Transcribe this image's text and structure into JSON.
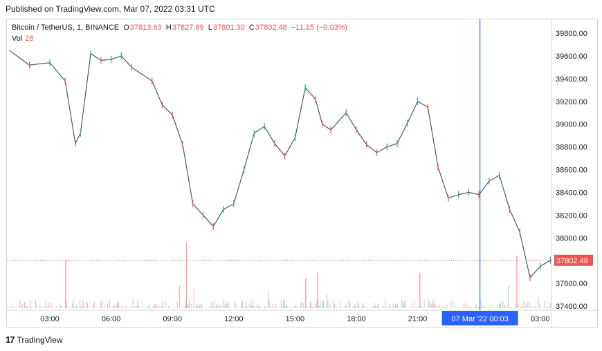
{
  "published": "Published on TradingView.com, Mar 07, 2022 03:31 UTC",
  "legend": {
    "symbol": "Bitcoin / TetherUS, 1, BINANCE",
    "o_label": "O",
    "o_value": "37813.63",
    "h_label": "H",
    "h_value": "37827.89",
    "l_label": "L",
    "l_value": "37801.30",
    "c_label": "C",
    "c_value": "37802.48",
    "change": "−11.15 (−0.03%)",
    "vol_label": "Vol",
    "vol_value": "28"
  },
  "footer": {
    "logo": "17",
    "brand": "TradingView"
  },
  "colors": {
    "up": "#26a69a",
    "down": "#ef5350",
    "crosshair": "#2962ff",
    "price_tag": "#ef5350"
  },
  "chart_data": {
    "type": "line",
    "title": "Bitcoin / TetherUS, 1, BINANCE",
    "xlabel": "",
    "ylabel": "",
    "ylim": [
      37400,
      39800
    ],
    "yticks": [
      "39800.00",
      "39600.00",
      "39400.00",
      "39200.00",
      "39000.00",
      "38800.00",
      "38600.00",
      "38400.00",
      "38200.00",
      "38000.00",
      "37600.00",
      "37400.00"
    ],
    "xticks": [
      "03:00",
      "06:00",
      "09:00",
      "12:00",
      "15:00",
      "18:00",
      "21:00",
      "03:00"
    ],
    "current_price": "37802.48",
    "crosshair_label": "07 Mar '22   00:03",
    "crosshair_time": "00:03",
    "grid": false,
    "series": [
      {
        "x": [
          "01:00",
          "02:00",
          "03:00",
          "03:45",
          "04:15",
          "04:30",
          "05:00",
          "05:30",
          "06:00",
          "06:30",
          "07:00",
          "08:00",
          "08:30",
          "09:00",
          "09:30",
          "10:00",
          "10:30",
          "11:00",
          "11:30",
          "12:00",
          "12:30",
          "13:00",
          "13:30",
          "14:00",
          "14:30",
          "15:00",
          "15:30",
          "16:00",
          "16:20",
          "16:45",
          "17:30",
          "18:00",
          "18:30",
          "19:00",
          "19:30",
          "20:00",
          "20:30",
          "21:00",
          "21:30",
          "22:00",
          "22:30",
          "23:00",
          "23:30",
          "00:00",
          "00:30",
          "01:00",
          "01:30",
          "02:00",
          "02:30",
          "03:00",
          "03:30"
        ],
        "values": [
          39650,
          39520,
          39540,
          39380,
          38830,
          38920,
          39620,
          39560,
          39570,
          39600,
          39500,
          39380,
          39170,
          39080,
          38820,
          38300,
          38200,
          38100,
          38250,
          38300,
          38600,
          38920,
          38980,
          38830,
          38720,
          38880,
          39320,
          39220,
          39000,
          38950,
          39100,
          38950,
          38820,
          38750,
          38800,
          38830,
          39010,
          39200,
          39150,
          38620,
          38350,
          38380,
          38400,
          38380,
          38500,
          38550,
          38250,
          38050,
          37650,
          37750,
          37802
        ]
      }
    ],
    "volume": {
      "spikes": [
        {
          "x": "03:45",
          "value": 520
        },
        {
          "x": "09:40",
          "value": 700
        },
        {
          "x": "15:30",
          "value": 320
        },
        {
          "x": "16:05",
          "value": 380
        },
        {
          "x": "21:05",
          "value": 380
        },
        {
          "x": "01:50",
          "value": 560
        }
      ],
      "baseline_max": 120
    }
  }
}
